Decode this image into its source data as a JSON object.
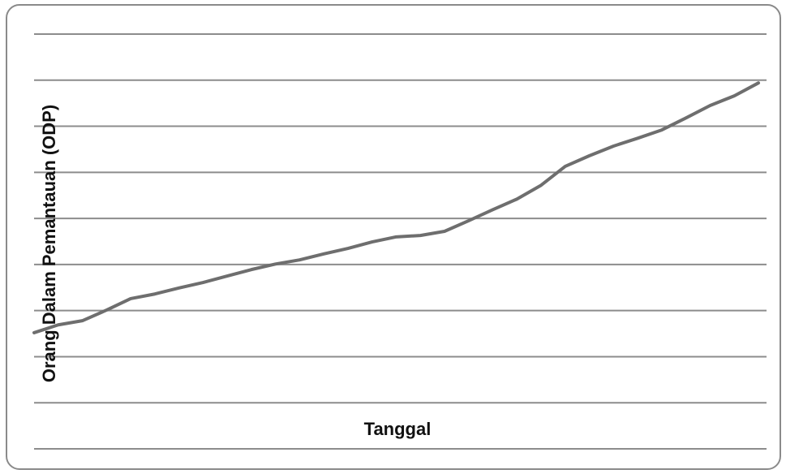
{
  "chart_data": {
    "type": "line",
    "x_label": "Tanggal",
    "y_label": "Orang Dalam Pemantauan (ODP)",
    "categories": [
      null,
      null,
      null,
      null,
      null,
      null,
      null,
      null,
      null,
      null,
      null,
      null,
      null,
      null,
      null,
      null,
      null,
      null,
      null,
      null,
      null,
      null,
      null,
      null,
      null,
      null,
      null,
      null,
      null,
      null,
      null
    ],
    "series": [
      {
        "color": "#6e6e6e",
        "values": [
          2.52,
          2.69,
          2.78,
          3.01,
          3.26,
          3.36,
          3.49,
          3.61,
          3.75,
          3.89,
          4.01,
          4.1,
          4.23,
          4.35,
          4.49,
          4.6,
          4.63,
          4.72,
          4.95,
          5.19,
          5.42,
          5.72,
          6.13,
          6.36,
          6.57,
          6.74,
          6.92,
          7.18,
          7.45,
          7.66,
          7.94
        ]
      }
    ],
    "ylim": [
      0,
      9
    ],
    "yticks": [
      0,
      1,
      2,
      3,
      4,
      5,
      6,
      7,
      8,
      9
    ],
    "grid": true
  }
}
